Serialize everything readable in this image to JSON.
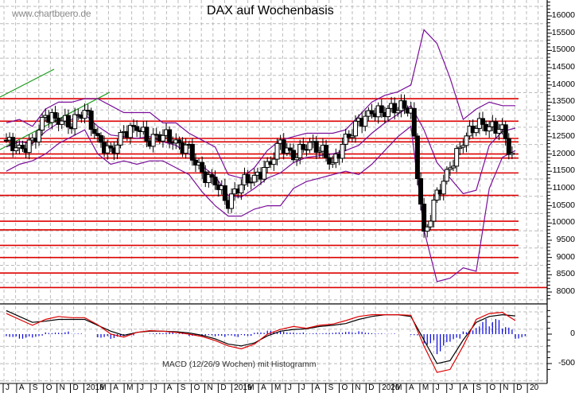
{
  "header": {
    "watermark": "www.chartbuero.de",
    "title": "DAX auf Wochenbasis"
  },
  "macd_panel": {
    "label": "MACD (12/26/9 Wochen) mit Histogramm"
  },
  "colors": {
    "resistance_lines": "#dd0000",
    "bollinger_bands": "#7a0f9a",
    "trend_channel": "#1a9a1a",
    "candle_body_down": "#000000",
    "candle_body_up": "#ffffff",
    "macd_line": "#000000",
    "signal_line": "#dd0000",
    "histogram": "#0000dd",
    "grid": "#bbbbbb"
  },
  "chart_data": [
    {
      "type": "candlestick",
      "title": "DAX auf Wochenbasis",
      "xlabel": "",
      "ylabel": "",
      "ylim": [
        7700,
        16500
      ],
      "y_ticks": [
        8000,
        8500,
        9000,
        9500,
        10000,
        10500,
        11000,
        11500,
        12000,
        12500,
        13000,
        13500,
        14000,
        14500,
        15000,
        15500,
        16000
      ],
      "x_ticks": [
        "J",
        "A",
        "S",
        "O",
        "N",
        "D",
        "2018",
        "M",
        "A",
        "M",
        "J",
        "J",
        "A",
        "S",
        "O",
        "N",
        "D",
        "2019",
        "M",
        "A",
        "M",
        "J",
        "J",
        "A",
        "S",
        "O",
        "N",
        "D",
        "2020",
        "M",
        "A",
        "M",
        "J",
        "J",
        "A",
        "S",
        "O",
        "N",
        "D",
        "20"
      ],
      "grid": true,
      "horizontal_levels": [
        13600,
        12950,
        12450,
        12350,
        12000,
        11880,
        11450,
        10800,
        10050,
        9800,
        9350,
        9000,
        8550,
        8130
      ],
      "series": [
        {
          "name": "DAX weekly close (approx.)",
          "x": [
            "2017-07",
            "2017-08",
            "2017-09",
            "2017-10",
            "2017-11",
            "2017-12",
            "2018-01",
            "2018-02",
            "2018-03",
            "2018-04",
            "2018-05",
            "2018-06",
            "2018-07",
            "2018-08",
            "2018-09",
            "2018-10",
            "2018-11",
            "2018-12",
            "2019-01",
            "2019-02",
            "2019-03",
            "2019-04",
            "2019-05",
            "2019-06",
            "2019-07",
            "2019-08",
            "2019-09",
            "2019-10",
            "2019-11",
            "2019-12",
            "2020-01",
            "2020-02",
            "2020-03",
            "2020-04",
            "2020-05",
            "2020-06",
            "2020-07",
            "2020-08",
            "2020-09",
            "2020-10"
          ],
          "values": [
            12400,
            12100,
            12300,
            13100,
            13000,
            12900,
            13300,
            12400,
            12000,
            12600,
            12800,
            12400,
            12600,
            12300,
            12100,
            11400,
            11200,
            10600,
            11200,
            11300,
            11600,
            12300,
            11900,
            12300,
            12200,
            11700,
            12400,
            12900,
            13200,
            13250,
            13400,
            13300,
            9600,
            10800,
            11600,
            12400,
            12900,
            12800,
            12700,
            11600
          ]
        },
        {
          "name": "Bollinger upper (approx.)",
          "values": [
            12900,
            13000,
            12800,
            13300,
            13500,
            13500,
            13600,
            13600,
            13400,
            13200,
            13200,
            13200,
            12900,
            12900,
            12600,
            12400,
            12200,
            11400,
            11300,
            11600,
            12100,
            12400,
            12500,
            12600,
            12600,
            12600,
            12700,
            13100,
            13500,
            13700,
            13800,
            14000,
            15600,
            15200,
            14200,
            13000,
            13300,
            13500,
            13400,
            13400
          ]
        },
        {
          "name": "Bollinger lower (approx.)",
          "values": [
            11500,
            11700,
            11800,
            12000,
            12300,
            12500,
            12700,
            12000,
            11700,
            11800,
            11700,
            11800,
            11800,
            11600,
            11400,
            10900,
            10500,
            10200,
            10200,
            10400,
            10500,
            10500,
            11000,
            11200,
            11300,
            11400,
            11500,
            11400,
            11700,
            12100,
            12500,
            12800,
            9800,
            8300,
            8400,
            8700,
            8600,
            11000,
            11900,
            12100
          ]
        }
      ]
    },
    {
      "type": "line",
      "title": "MACD (12/26/9 Wochen) mit Histogramm",
      "ylim": [
        -700,
        500
      ],
      "y_ticks": [
        0,
        -500
      ],
      "series": [
        {
          "name": "MACD",
          "values": [
            400,
            300,
            200,
            220,
            250,
            250,
            250,
            150,
            50,
            -20,
            30,
            50,
            50,
            40,
            20,
            -20,
            -80,
            -170,
            -200,
            -150,
            -30,
            50,
            80,
            90,
            130,
            150,
            180,
            250,
            300,
            330,
            330,
            300,
            -100,
            -500,
            -450,
            -100,
            200,
            300,
            330,
            310
          ]
        },
        {
          "name": "Signal",
          "values": [
            350,
            250,
            150,
            250,
            300,
            280,
            280,
            160,
            0,
            -50,
            30,
            60,
            50,
            30,
            0,
            -40,
            -110,
            -200,
            -250,
            -170,
            0,
            80,
            130,
            100,
            150,
            170,
            230,
            300,
            330,
            330,
            330,
            320,
            -200,
            -650,
            -600,
            -200,
            250,
            350,
            370,
            230
          ]
        },
        {
          "name": "Histogramm",
          "values": [
            -50,
            -80,
            -60,
            40,
            50,
            10,
            0,
            -60,
            -80,
            -40,
            0,
            20,
            30,
            10,
            -30,
            -40,
            -60,
            -50,
            -30,
            30,
            60,
            60,
            40,
            20,
            20,
            30,
            40,
            50,
            20,
            10,
            0,
            -20,
            -180,
            -340,
            -150,
            80,
            260,
            260,
            120,
            -80
          ]
        }
      ]
    }
  ]
}
